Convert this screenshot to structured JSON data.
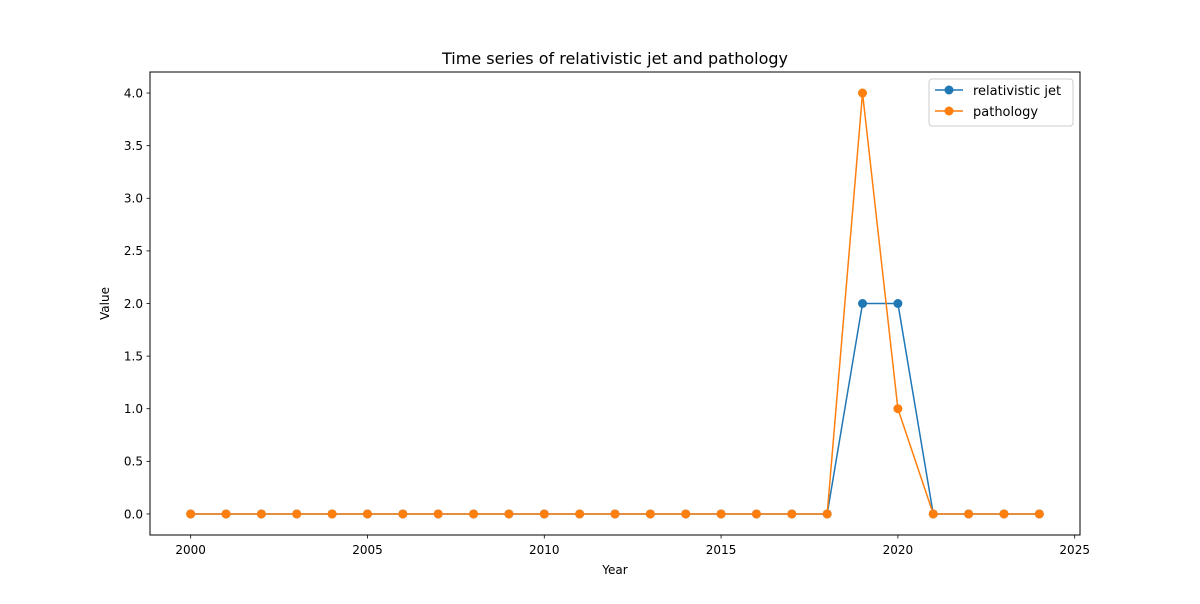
{
  "chart_data": {
    "type": "line",
    "title": "Time series of relativistic jet and pathology",
    "xlabel": "Year",
    "ylabel": "Value",
    "xlim": [
      1998.85,
      2025.15
    ],
    "ylim": [
      -0.2,
      4.2
    ],
    "x_ticks": [
      2000,
      2005,
      2010,
      2015,
      2020,
      2025
    ],
    "y_ticks": [
      0.0,
      0.5,
      1.0,
      1.5,
      2.0,
      2.5,
      3.0,
      3.5,
      4.0
    ],
    "x": [
      2000,
      2001,
      2002,
      2003,
      2004,
      2005,
      2006,
      2007,
      2008,
      2009,
      2010,
      2011,
      2012,
      2013,
      2014,
      2015,
      2016,
      2017,
      2018,
      2019,
      2020,
      2021,
      2022,
      2023,
      2024
    ],
    "series": [
      {
        "name": "relativistic jet",
        "color": "#1f77b4",
        "values": [
          0,
          0,
          0,
          0,
          0,
          0,
          0,
          0,
          0,
          0,
          0,
          0,
          0,
          0,
          0,
          0,
          0,
          0,
          0,
          2,
          2,
          0,
          0,
          0,
          0
        ]
      },
      {
        "name": "pathology",
        "color": "#ff7f0e",
        "values": [
          0,
          0,
          0,
          0,
          0,
          0,
          0,
          0,
          0,
          0,
          0,
          0,
          0,
          0,
          0,
          0,
          0,
          0,
          0,
          4,
          1,
          0,
          0,
          0,
          0
        ]
      }
    ],
    "grid": false,
    "legend": "top-right",
    "marker": "circle"
  }
}
